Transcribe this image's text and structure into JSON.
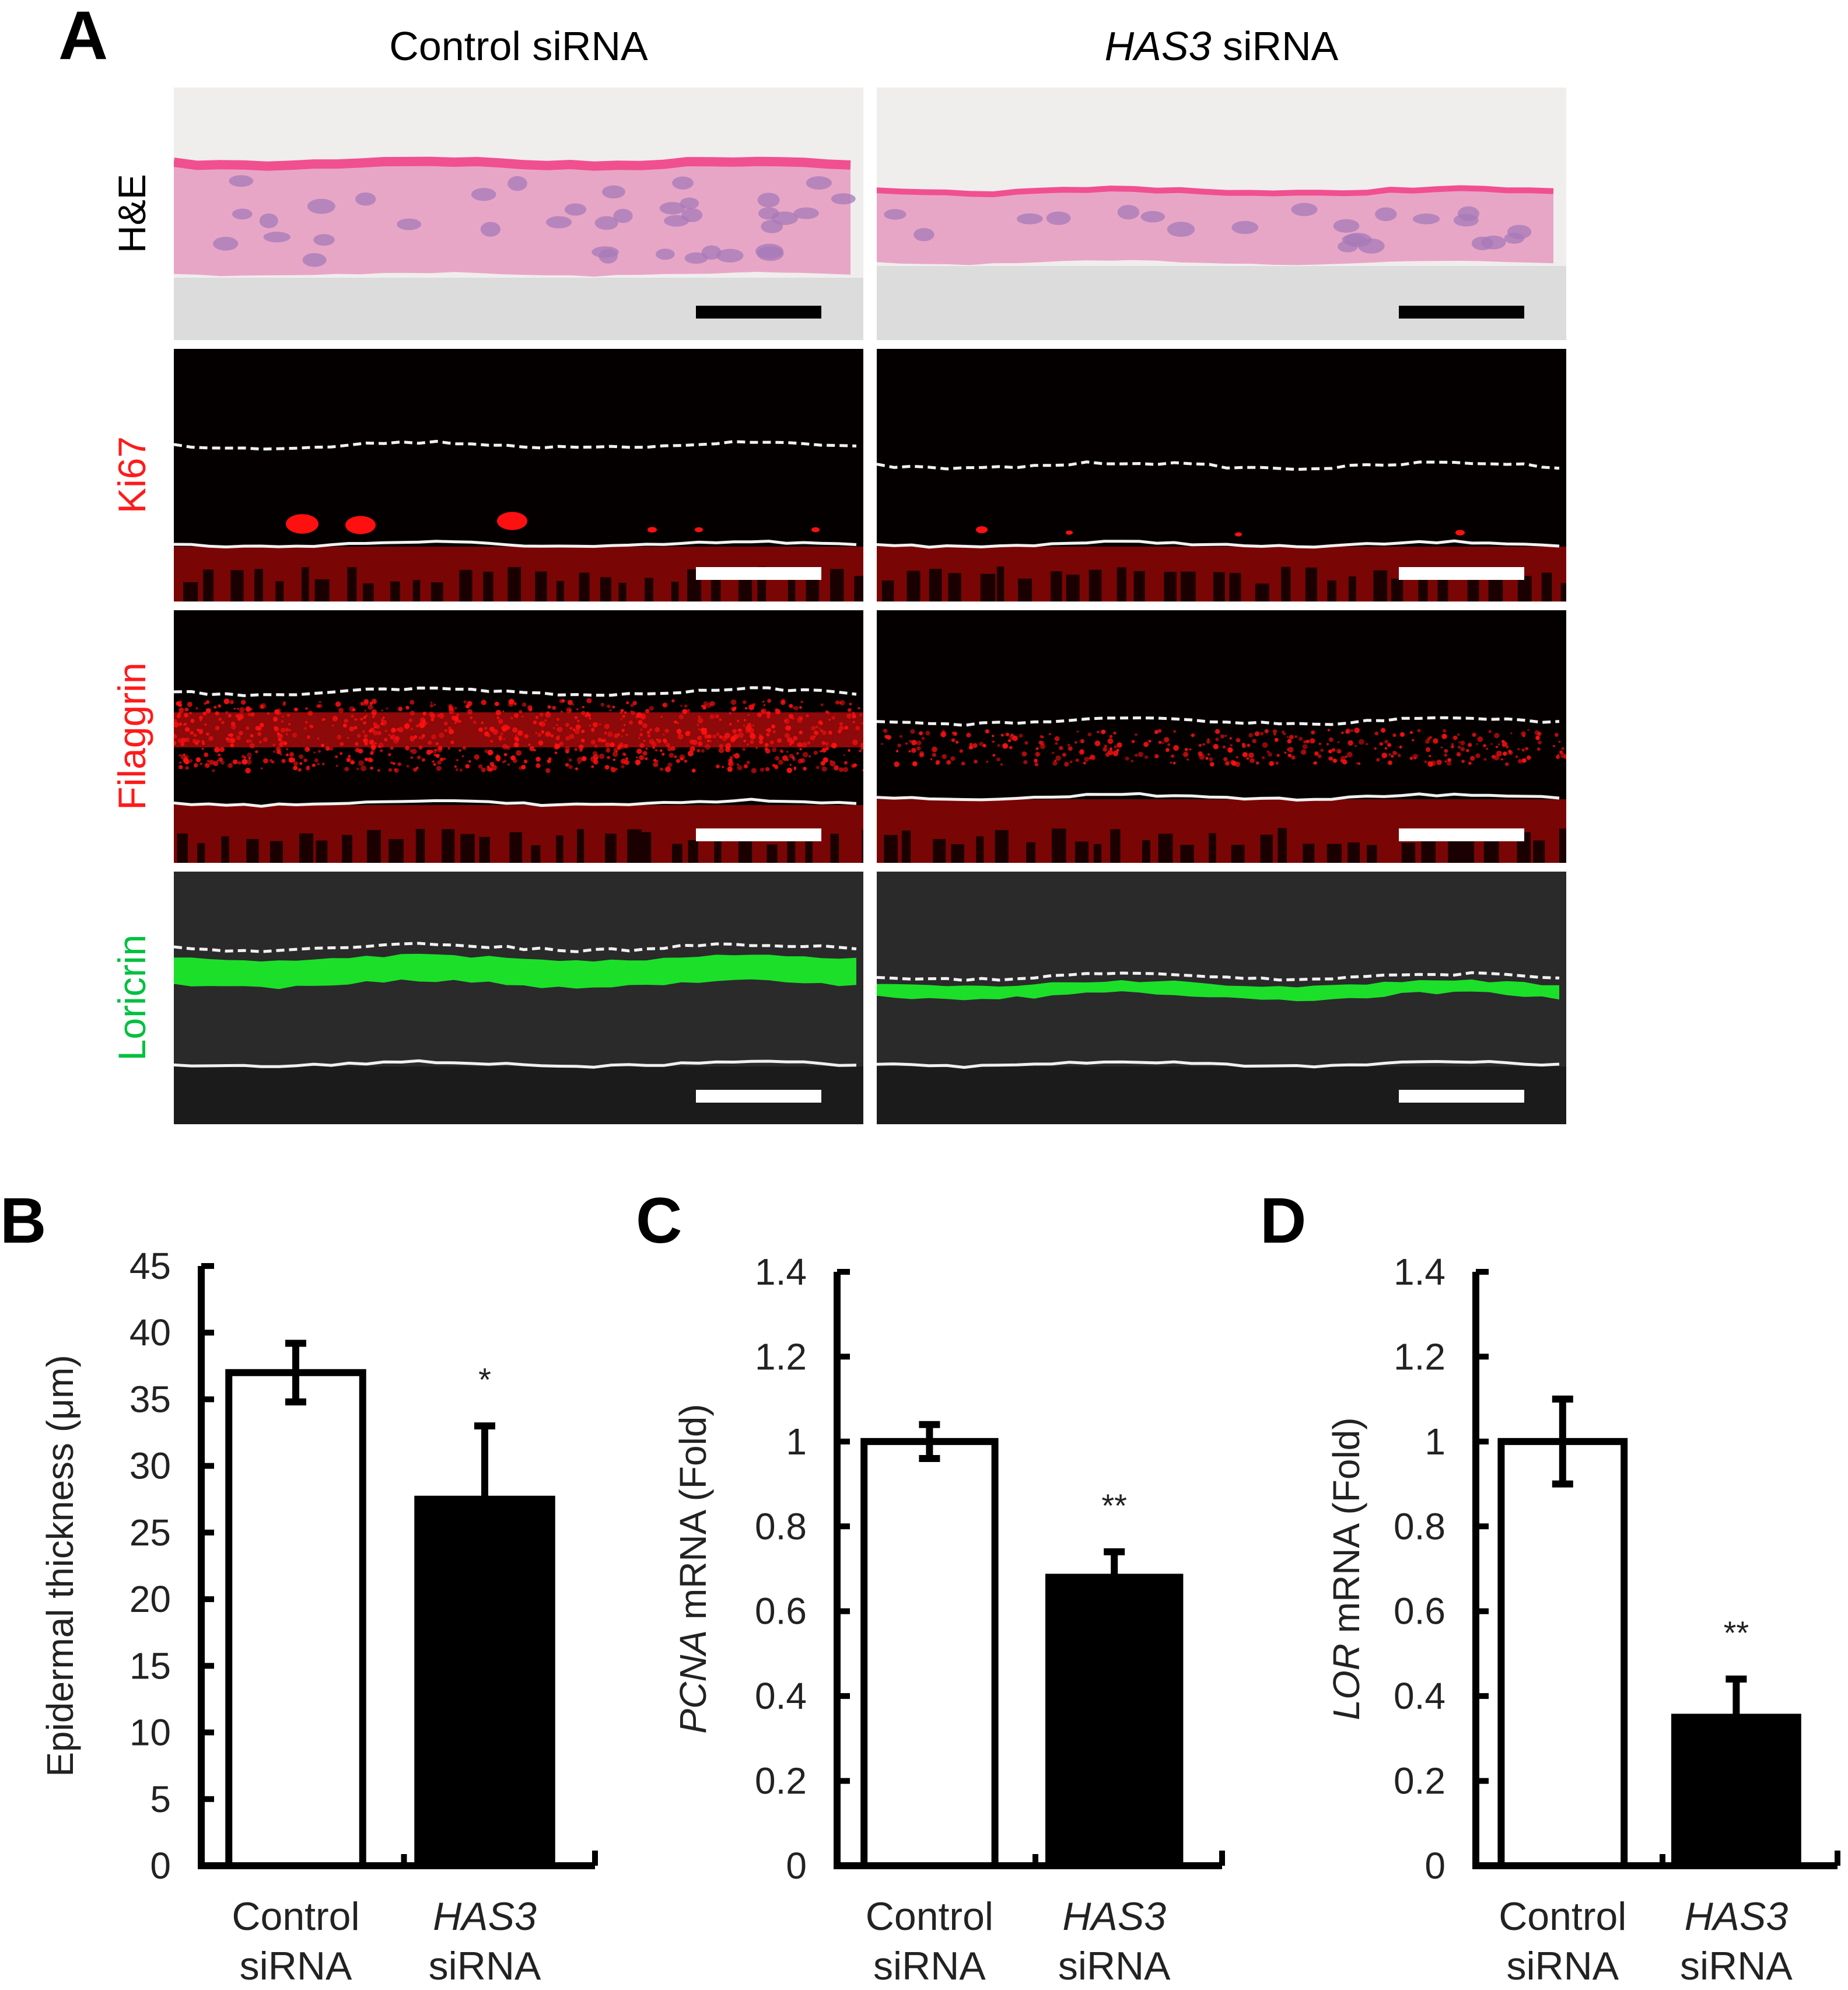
{
  "panel_a": {
    "letter": "A",
    "columns": [
      {
        "text": "Control siRNA",
        "italic": ""
      },
      {
        "italic": "HAS3",
        "text": " siRNA"
      }
    ],
    "rows": [
      {
        "label": "H&E",
        "color": "#000000",
        "background": "#f0eded",
        "tissue_color": "#e8a6c6",
        "stain_color": "#f05090"
      },
      {
        "label": "Ki67",
        "color": "#ff1a1a",
        "background": "#050000",
        "stain_color": "#ff1010"
      },
      {
        "label": "Filaggrin",
        "color": "#ff1a1a",
        "background": "#050000",
        "stain_color": "#ff1010"
      },
      {
        "label": "Loricrin",
        "color": "#00c040",
        "background": "#2a2a2a",
        "stain_color": "#1aff2a"
      }
    ]
  },
  "chart_data": [
    {
      "panel": "B",
      "type": "bar",
      "categories": [
        [
          "Control",
          "siRNA"
        ],
        [
          "HAS3",
          "siRNA"
        ]
      ],
      "category_italic_first_line": [
        false,
        true
      ],
      "values": [
        37,
        27.5
      ],
      "errors": [
        2.2,
        5.5
      ],
      "significance": [
        "",
        "*"
      ],
      "bar_fill": [
        "#ffffff",
        "#000000"
      ],
      "ylabel": "Epidermal thickness (μm)",
      "ylabel_italic": "",
      "ylim": [
        0,
        45
      ],
      "ticks": [
        "0",
        "5",
        "10",
        "15",
        "20",
        "25",
        "30",
        "35",
        "40",
        "45"
      ]
    },
    {
      "panel": "C",
      "type": "bar",
      "categories": [
        [
          "Control",
          "siRNA"
        ],
        [
          "HAS3",
          "siRNA"
        ]
      ],
      "category_italic_first_line": [
        false,
        true
      ],
      "values": [
        1.0,
        0.68
      ],
      "errors": [
        0.04,
        0.06
      ],
      "significance": [
        "",
        "**"
      ],
      "bar_fill": [
        "#ffffff",
        "#000000"
      ],
      "ylabel": " mRNA (Fold)",
      "ylabel_italic": "PCNA",
      "ylim": [
        0,
        1.4
      ],
      "ticks": [
        "0",
        "0.2",
        "0.4",
        "0.6",
        "0.8",
        "1",
        "1.2",
        "1.4"
      ]
    },
    {
      "panel": "D",
      "type": "bar",
      "categories": [
        [
          "Control",
          "siRNA"
        ],
        [
          "HAS3",
          "siRNA"
        ]
      ],
      "category_italic_first_line": [
        false,
        true
      ],
      "values": [
        1.0,
        0.35
      ],
      "errors": [
        0.1,
        0.09
      ],
      "significance": [
        "",
        "**"
      ],
      "bar_fill": [
        "#ffffff",
        "#000000"
      ],
      "ylabel": " mRNA (Fold)",
      "ylabel_italic": "LOR",
      "ylim": [
        0,
        1.4
      ],
      "ticks": [
        "0",
        "0.2",
        "0.4",
        "0.6",
        "0.8",
        "1",
        "1.2",
        "1.4"
      ]
    }
  ]
}
